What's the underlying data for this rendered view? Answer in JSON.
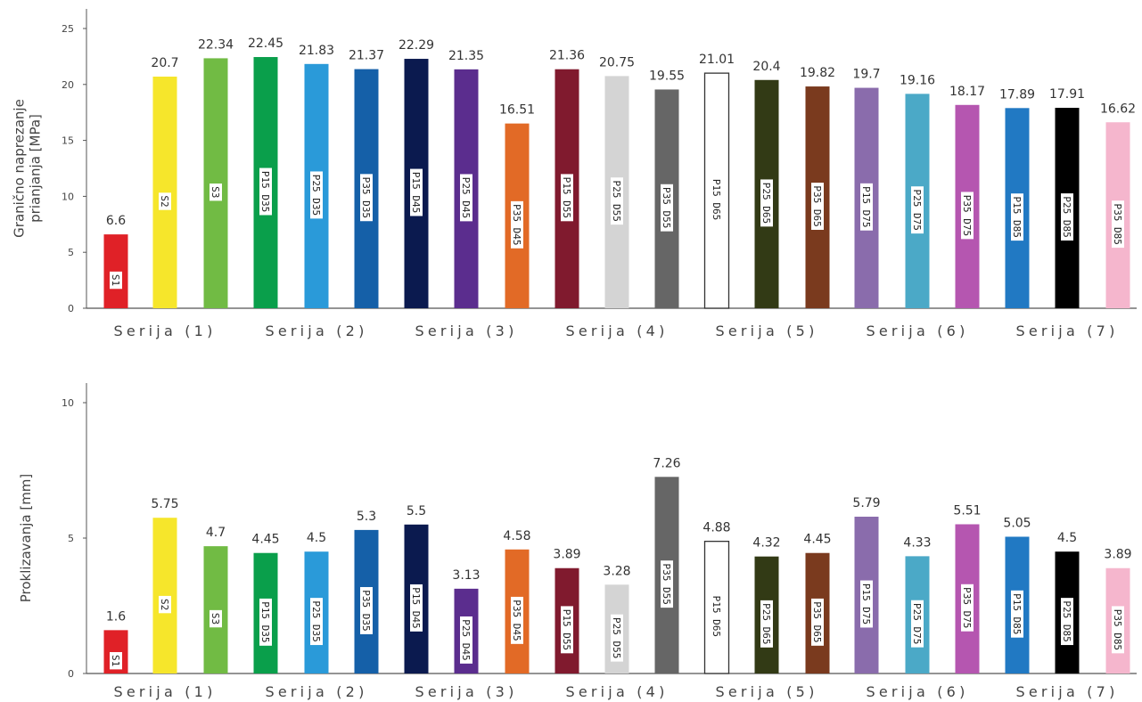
{
  "chart_data": [
    {
      "type": "bar",
      "ylabel": "Granično naprezanje prianjanja [MPa]",
      "ylim": [
        0,
        25
      ],
      "yticks": [
        0,
        5,
        10,
        15,
        20,
        25
      ],
      "ytick_labels": [
        "0",
        "5",
        "10",
        "15",
        "20",
        "25"
      ],
      "grid": false,
      "groups": [
        "Serija (1)",
        "Serija (2)",
        "Serija (3)",
        "Serija (4)",
        "Serija (5)",
        "Serija (6)",
        "Serija (7)"
      ],
      "categories": [
        "S1",
        "S2",
        "S3",
        "P15 D35",
        "P25 D35",
        "P35 D35",
        "P15 D45",
        "P25 D45",
        "P35 D45",
        "P15 D55",
        "P25 D55",
        "P35 D55",
        "P15 D65",
        "P25 D65",
        "P35 D65",
        "P15 D75",
        "P25 D75",
        "P35 D75",
        "P15 D85",
        "P25 D85",
        "P35 D85"
      ],
      "values": [
        6.6,
        20.7,
        22.34,
        22.45,
        21.83,
        21.37,
        22.29,
        21.35,
        16.51,
        21.36,
        20.75,
        19.55,
        21.01,
        20.4,
        19.82,
        19.7,
        19.16,
        18.17,
        17.89,
        17.91,
        16.62
      ],
      "value_labels": [
        "6.6",
        "20.7",
        "22.34",
        "22.45",
        "21.83",
        "21.37",
        "22.29",
        "21.35",
        "16.51",
        "21.36",
        "20.75",
        "19.55",
        "21.01",
        "20.4",
        "19.82",
        "19.7",
        "19.16",
        "18.17",
        "17.89",
        "17.91",
        "16.62"
      ]
    },
    {
      "type": "bar",
      "ylabel": "Proklizavanja [mm]",
      "ylim": [
        0,
        10
      ],
      "yticks": [
        0,
        5,
        10
      ],
      "ytick_labels": [
        "0",
        "5",
        "10"
      ],
      "grid": false,
      "groups": [
        "Serija (1)",
        "Serija (2)",
        "Serija (3)",
        "Serija (4)",
        "Serija (5)",
        "Serija (6)",
        "Serija (7)"
      ],
      "categories": [
        "S1",
        "S2",
        "S3",
        "P15 D35",
        "P25 D35",
        "P35 D35",
        "P15 D45",
        "P25 D45",
        "P35 D45",
        "P15 D55",
        "P25 D55",
        "P35 D55",
        "P15 D65",
        "P25 D65",
        "P35 D65",
        "P15 D75",
        "P25 D75",
        "P35 D75",
        "P15 D85",
        "P25 D85",
        "P35 D85"
      ],
      "values": [
        1.6,
        5.75,
        4.7,
        4.45,
        4.5,
        5.3,
        5.5,
        3.13,
        4.58,
        3.89,
        3.28,
        7.26,
        4.88,
        4.32,
        4.45,
        5.79,
        4.33,
        5.51,
        5.05,
        4.5,
        3.89
      ],
      "value_labels": [
        "1.6",
        "5.75",
        "4.7",
        "4.45",
        "4.5",
        "5.3",
        "5.5",
        "3.13",
        "4.58",
        "3.89",
        "3.28",
        "7.26",
        "4.88",
        "4.32",
        "4.45",
        "5.79",
        "4.33",
        "5.51",
        "5.05",
        "4.5",
        "3.89"
      ]
    }
  ],
  "bar_colors": [
    "#e02127",
    "#f6e62b",
    "#71bb44",
    "#0a9f4b",
    "#2a9ad9",
    "#1560a8",
    "#0b1a4f",
    "#5b2d8e",
    "#e26a26",
    "#801a2e",
    "#d4d4d4",
    "#666666",
    "#ffffff",
    "#323a15",
    "#7a3a1e",
    "#8a6cac",
    "#4ba9c7",
    "#b556b0",
    "#2179c3",
    "#000000",
    "#f5b6cd"
  ],
  "bar_stroke_colors": [
    "none",
    "none",
    "none",
    "none",
    "none",
    "none",
    "none",
    "none",
    "none",
    "none",
    "none",
    "none",
    "#333333",
    "none",
    "none",
    "none",
    "none",
    "none",
    "none",
    "none",
    "none"
  ],
  "text_color": "#333333",
  "axis_color": "#555555"
}
